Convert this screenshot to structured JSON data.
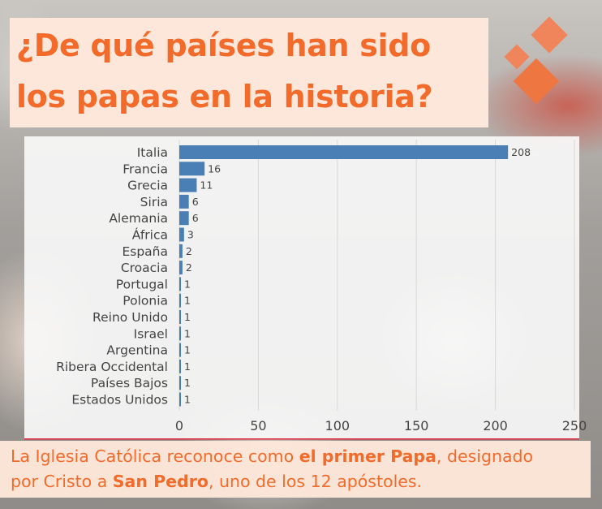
{
  "title": {
    "line1": "¿De qué países han sido",
    "line2": "los papas en la historia?"
  },
  "colors": {
    "accent": "#f26b2a",
    "bar": "#4a7fb5",
    "panel": "#fde7da"
  },
  "chart_data": {
    "type": "bar",
    "orientation": "horizontal",
    "categories": [
      "Italia",
      "Francia",
      "Grecia",
      "Siria",
      "Alemania",
      "África",
      "España",
      "Croacia",
      "Portugal",
      "Polonia",
      "Reino Unido",
      "Israel",
      "Argentina",
      "Ribera Occidental",
      "Países Bajos",
      "Estados Unidos"
    ],
    "values": [
      208,
      16,
      11,
      6,
      6,
      3,
      2,
      2,
      1,
      1,
      1,
      1,
      1,
      1,
      1,
      1
    ],
    "xlim": [
      0,
      250
    ],
    "xticks": [
      0,
      50,
      100,
      150,
      200,
      250
    ],
    "grid": true,
    "data_labels": true
  },
  "caption": {
    "line1_pre": "La Iglesia Católica reconoce como ",
    "line1_bold": "el primer Papa",
    "line1_post": ", designado",
    "line2_pre": "por Cristo a ",
    "line2_bold": "San Pedro",
    "line2_post": ", uno de los 12 apóstoles."
  }
}
